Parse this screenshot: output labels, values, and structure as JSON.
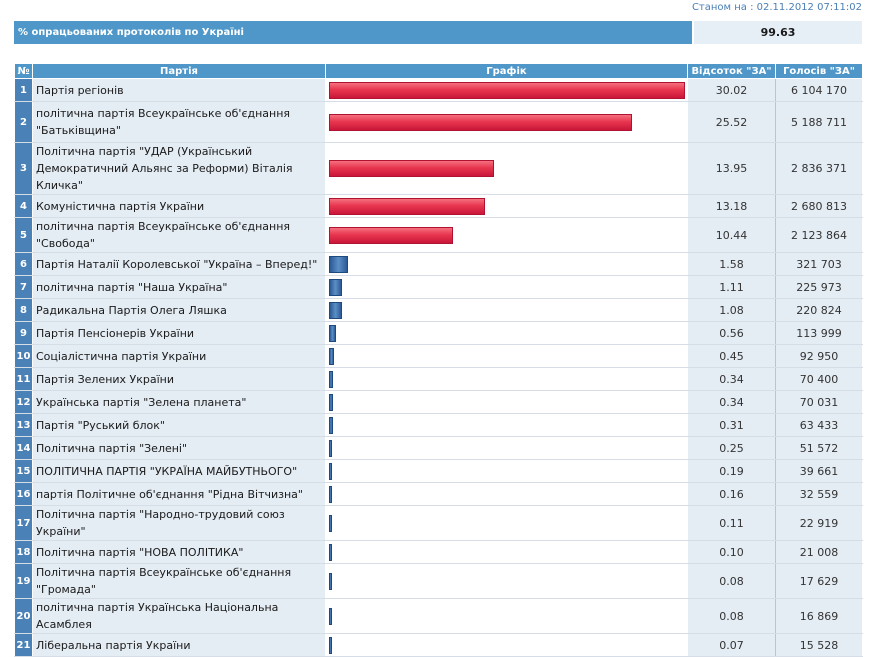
{
  "status_text": "Станом на : 02.11.2012 07:11:02",
  "summary": {
    "label": "% опрацьованих протоколів по Україні",
    "value": "99.63"
  },
  "table": {
    "headers": {
      "num": "№",
      "party": "Партія",
      "graph": "Графік",
      "percent": "Відсоток \"ЗА\"",
      "votes": "Голосів \"ЗА\""
    },
    "rows": [
      {
        "num": "1",
        "party": "Партія регіонів",
        "percent": "30.02",
        "votes": "6 104 170"
      },
      {
        "num": "2",
        "party": "політична партія Всеукраїнське об'єднання \"Батьківщина\"",
        "percent": "25.52",
        "votes": "5 188 711"
      },
      {
        "num": "3",
        "party": "Політична партія \"УДАР (Український Демократичний Альянс за Реформи) Віталія Кличка\"",
        "percent": "13.95",
        "votes": "2 836 371"
      },
      {
        "num": "4",
        "party": "Комуністична партія України",
        "percent": "13.18",
        "votes": "2 680 813"
      },
      {
        "num": "5",
        "party": "політична партія Всеукраїнське об'єднання \"Свобода\"",
        "percent": "10.44",
        "votes": "2 123 864"
      },
      {
        "num": "6",
        "party": "Партія Наталії Королевської \"Україна – Вперед!\"",
        "percent": "1.58",
        "votes": "321 703"
      },
      {
        "num": "7",
        "party": "політична партія \"Наша Україна\"",
        "percent": "1.11",
        "votes": "225 973"
      },
      {
        "num": "8",
        "party": "Радикальна Партія Олега Ляшка",
        "percent": "1.08",
        "votes": "220 824"
      },
      {
        "num": "9",
        "party": "Партія Пенсіонерів України",
        "percent": "0.56",
        "votes": "113 999"
      },
      {
        "num": "10",
        "party": "Соціалістична партія України",
        "percent": "0.45",
        "votes": "92 950"
      },
      {
        "num": "11",
        "party": "Партія Зелених України",
        "percent": "0.34",
        "votes": "70 400"
      },
      {
        "num": "12",
        "party": "Українська партія \"Зелена планета\"",
        "percent": "0.34",
        "votes": "70 031"
      },
      {
        "num": "13",
        "party": "Партія \"Руський блок\"",
        "percent": "0.31",
        "votes": "63 433"
      },
      {
        "num": "14",
        "party": "Політична партія \"Зелені\"",
        "percent": "0.25",
        "votes": "51 572"
      },
      {
        "num": "15",
        "party": "ПОЛІТИЧНА ПАРТІЯ \"УКРАЇНА МАЙБУТНЬОГО\"",
        "percent": "0.19",
        "votes": "39 661"
      },
      {
        "num": "16",
        "party": "партія Політичне об'єднання \"Рідна Вітчизна\"",
        "percent": "0.16",
        "votes": "32 559"
      },
      {
        "num": "17",
        "party": "Політична партія \"Народно-трудовий союз України\"",
        "percent": "0.11",
        "votes": "22 919"
      },
      {
        "num": "18",
        "party": "Політична партія \"НОВА ПОЛІТИКА\"",
        "percent": "0.10",
        "votes": "21 008"
      },
      {
        "num": "19",
        "party": "Політична партія Всеукраїнське об'єднання \"Громада\"",
        "percent": "0.08",
        "votes": "17 629"
      },
      {
        "num": "20",
        "party": "політична партія Українська Національна Асамблея",
        "percent": "0.08",
        "votes": "16 869"
      },
      {
        "num": "21",
        "party": "Ліберальна партія України",
        "percent": "0.07",
        "votes": "15 528"
      }
    ]
  },
  "colors": {
    "header_bg": "#4f97c9",
    "num_bg": "#4a82b8",
    "row_bg": "#e4ecf4",
    "bar_high": "#e8364f",
    "bar_low": "#3b6ca8"
  }
}
